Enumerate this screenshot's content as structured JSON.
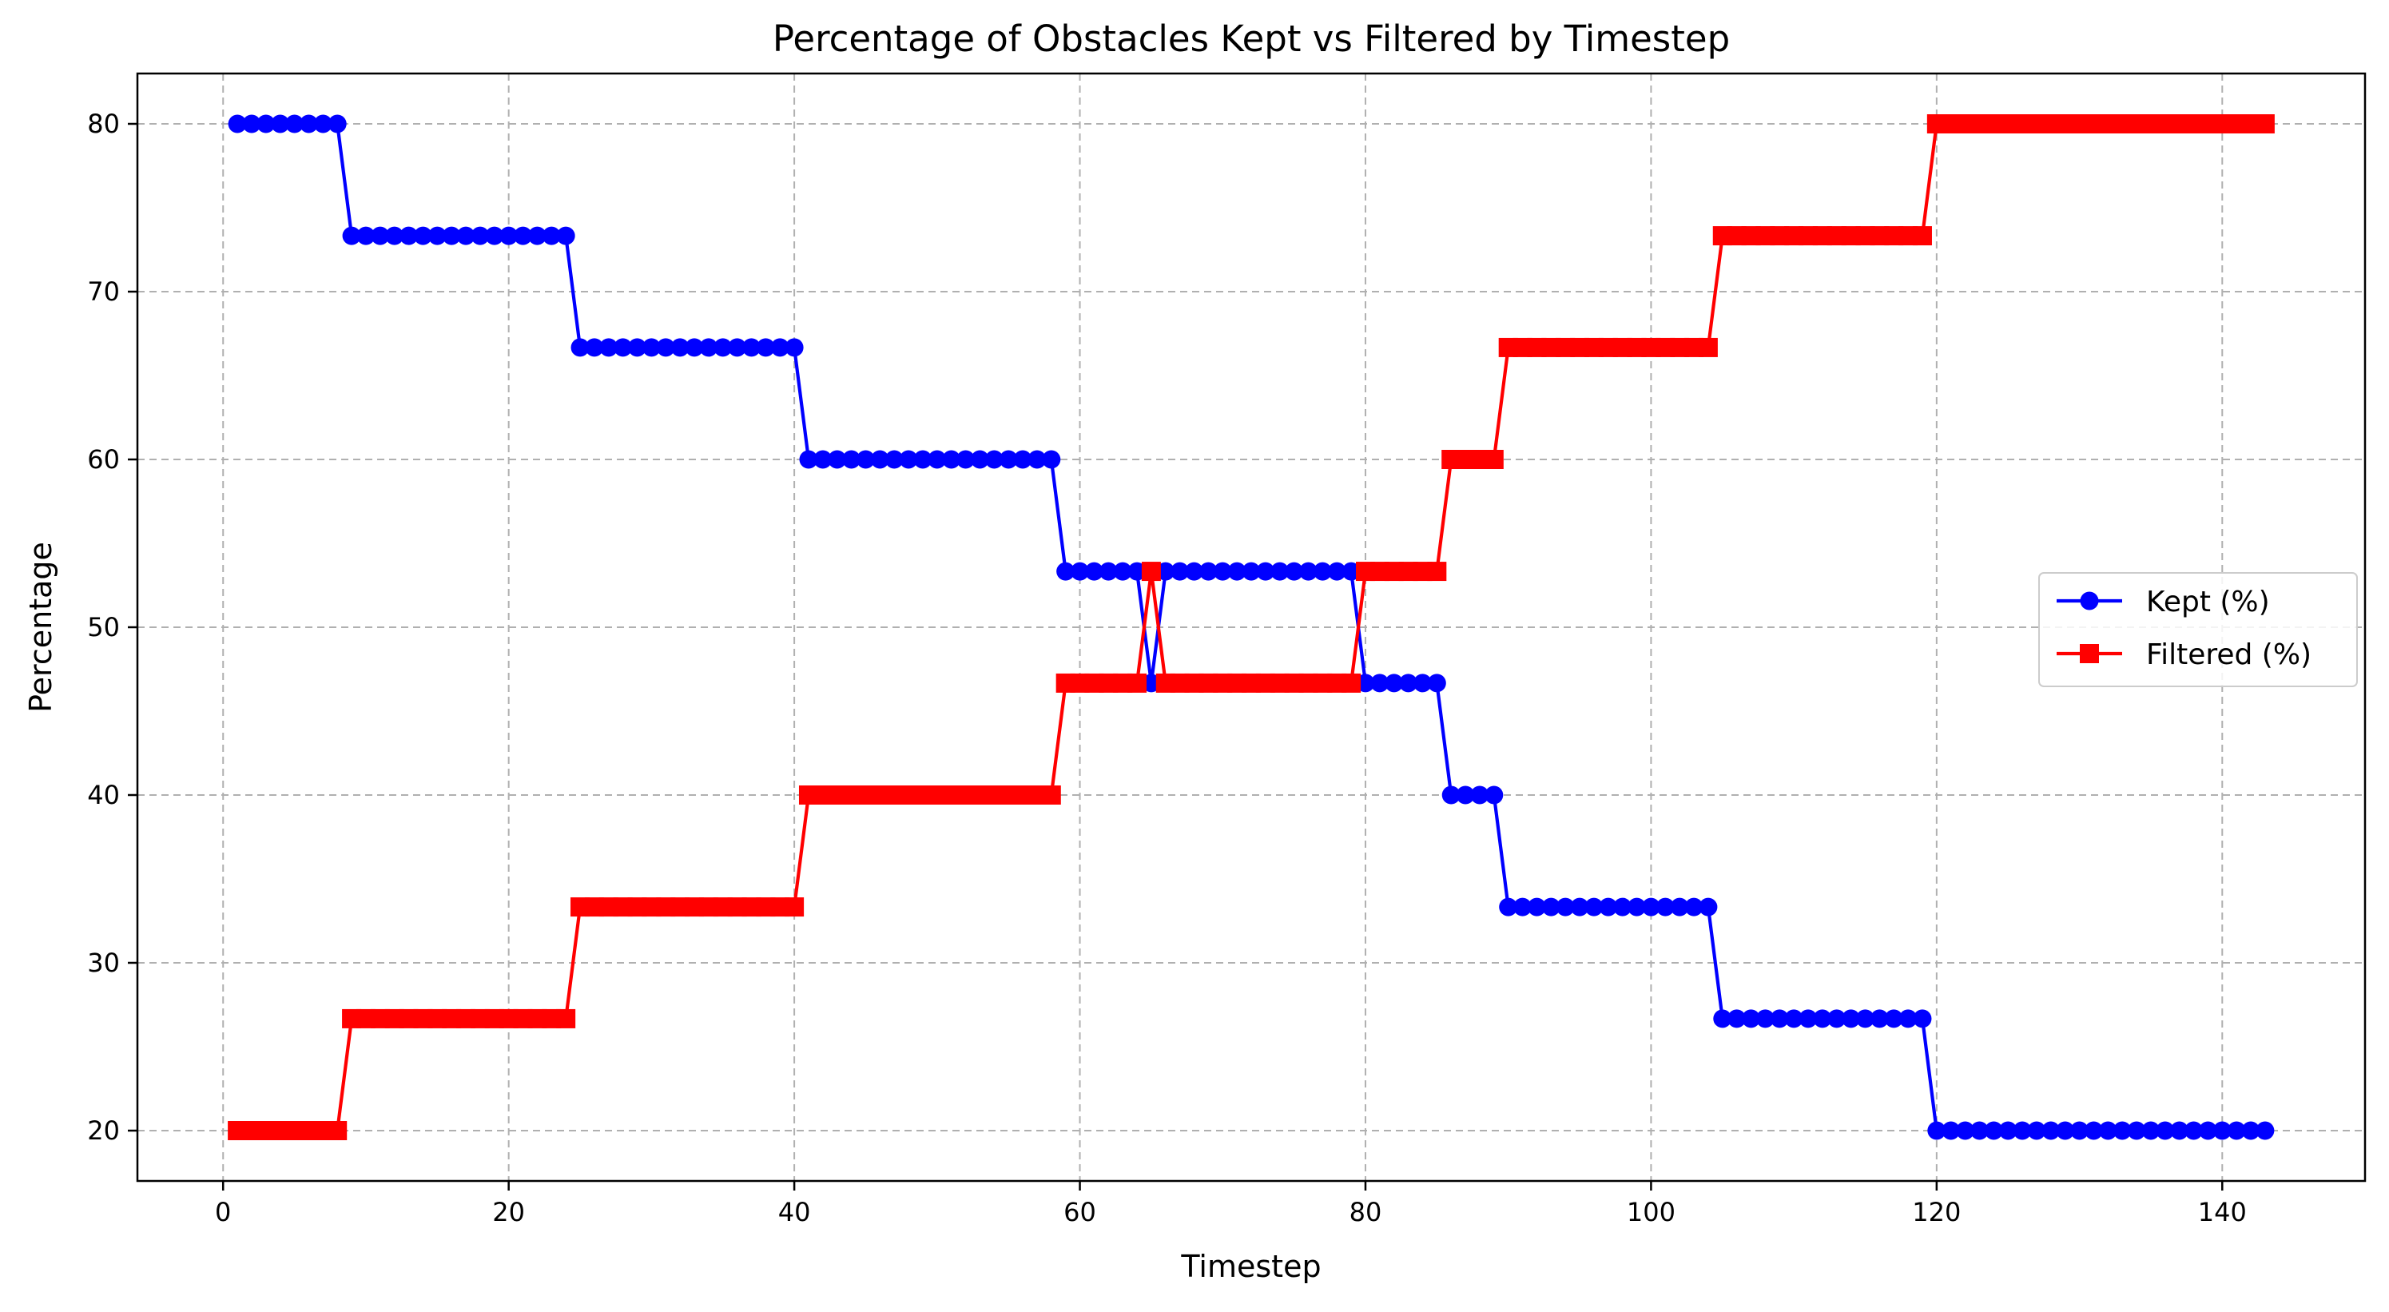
{
  "chart_data": {
    "type": "line",
    "title": "Percentage of Obstacles Kept vs Filtered by Timestep",
    "xlabel": "Timestep",
    "ylabel": "Percentage",
    "xlim": [
      -6,
      150
    ],
    "ylim": [
      17,
      83
    ],
    "xticks": [
      0,
      20,
      40,
      60,
      80,
      100,
      120,
      140
    ],
    "yticks": [
      20,
      30,
      40,
      50,
      60,
      70,
      80
    ],
    "grid": true,
    "grid_style": "dashed",
    "legend_position": "center-right",
    "series": [
      {
        "name": "Kept (%)",
        "color": "#0000ff",
        "marker": "circle",
        "segments": [
          {
            "x_start": 1,
            "x_end": 8,
            "value": 80.0
          },
          {
            "x_start": 9,
            "x_end": 24,
            "value": 73.33
          },
          {
            "x_start": 25,
            "x_end": 40,
            "value": 66.67
          },
          {
            "x_start": 41,
            "x_end": 58,
            "value": 60.0
          },
          {
            "x_start": 59,
            "x_end": 64,
            "value": 53.33
          },
          {
            "x_start": 65,
            "x_end": 65,
            "value": 46.67
          },
          {
            "x_start": 66,
            "x_end": 79,
            "value": 53.33
          },
          {
            "x_start": 80,
            "x_end": 85,
            "value": 46.67
          },
          {
            "x_start": 86,
            "x_end": 89,
            "value": 40.0
          },
          {
            "x_start": 90,
            "x_end": 104,
            "value": 33.33
          },
          {
            "x_start": 105,
            "x_end": 119,
            "value": 26.67
          },
          {
            "x_start": 120,
            "x_end": 143,
            "value": 20.0
          }
        ]
      },
      {
        "name": "Filtered (%)",
        "color": "#ff0000",
        "marker": "square",
        "segments": [
          {
            "x_start": 1,
            "x_end": 8,
            "value": 20.0
          },
          {
            "x_start": 9,
            "x_end": 24,
            "value": 26.67
          },
          {
            "x_start": 25,
            "x_end": 40,
            "value": 33.33
          },
          {
            "x_start": 41,
            "x_end": 58,
            "value": 40.0
          },
          {
            "x_start": 59,
            "x_end": 64,
            "value": 46.67
          },
          {
            "x_start": 65,
            "x_end": 65,
            "value": 53.33
          },
          {
            "x_start": 66,
            "x_end": 79,
            "value": 46.67
          },
          {
            "x_start": 80,
            "x_end": 85,
            "value": 53.33
          },
          {
            "x_start": 86,
            "x_end": 89,
            "value": 60.0
          },
          {
            "x_start": 90,
            "x_end": 104,
            "value": 66.67
          },
          {
            "x_start": 105,
            "x_end": 119,
            "value": 73.33
          },
          {
            "x_start": 120,
            "x_end": 143,
            "value": 80.0
          }
        ]
      }
    ]
  }
}
